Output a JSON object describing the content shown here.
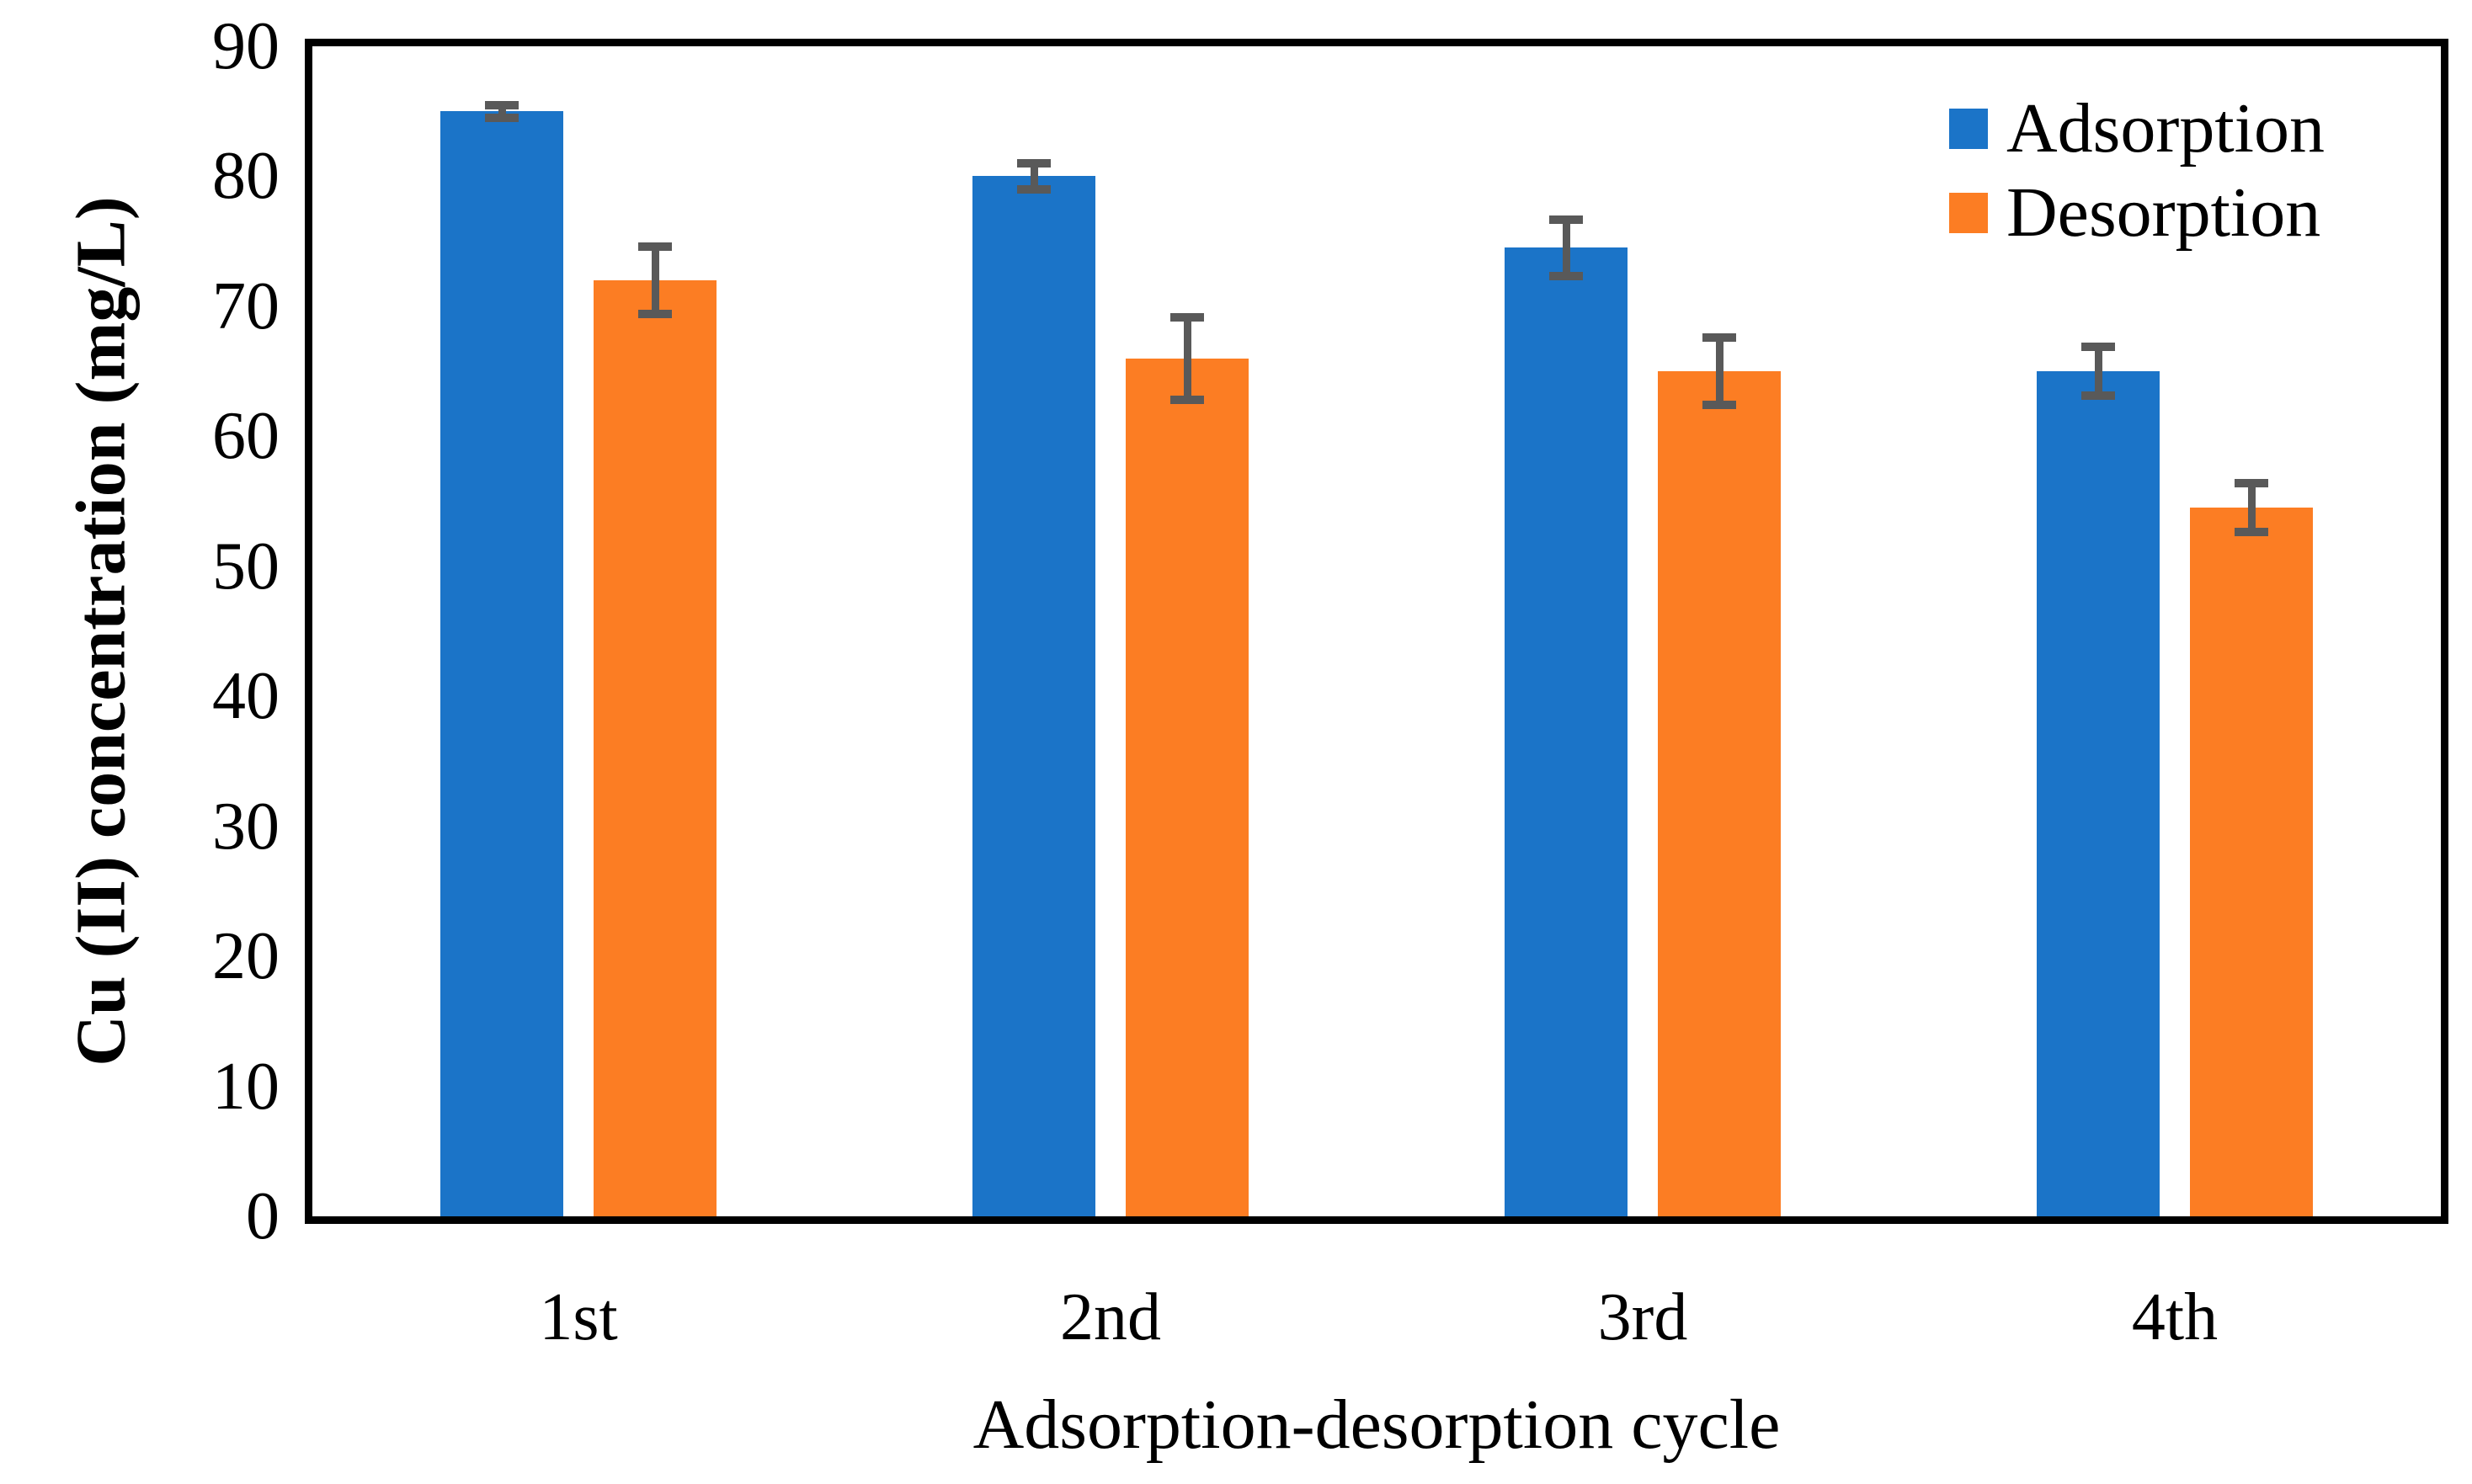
{
  "chart_data": {
    "type": "bar",
    "title": "",
    "categories": [
      "1st",
      "2nd",
      "3rd",
      "4th"
    ],
    "series": [
      {
        "name": "Adsorption",
        "color": "#1B74C8",
        "values": [
          85,
          80,
          74.5,
          65
        ],
        "errors": [
          0.8,
          1.3,
          2.5,
          2.2
        ]
      },
      {
        "name": "Desorption",
        "color": "#FC7D23",
        "values": [
          72,
          66,
          65,
          54.5
        ],
        "errors": [
          2.9,
          3.5,
          2.9,
          2.2
        ]
      }
    ],
    "xlabel": "Adsorption-desorption cycle",
    "ylabel": "Cu (II) concentration (mg/L)",
    "ylim": [
      0,
      90
    ],
    "y_ticks": [
      0,
      10,
      20,
      30,
      40,
      50,
      60,
      70,
      80,
      90
    ],
    "grid": false,
    "legend_position": "top-right-inside",
    "error_bar_color": "#595959",
    "axis_color": "#000000",
    "background": "#FFFFFF"
  }
}
